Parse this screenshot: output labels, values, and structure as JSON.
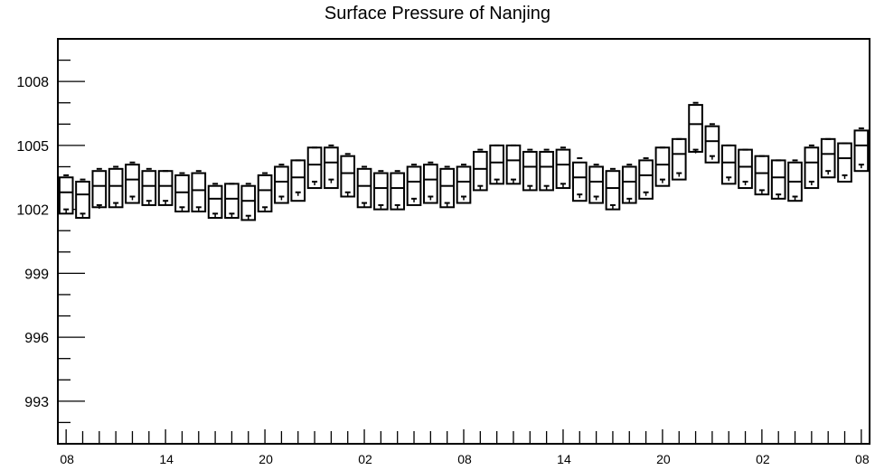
{
  "chart_data": {
    "type": "box",
    "title": "Surface Pressure of Nanjing",
    "xlabel": "",
    "ylabel": "",
    "ylim": [
      991,
      1010
    ],
    "yticks": [
      993,
      996,
      999,
      1002,
      1005,
      1008
    ],
    "ytick_labels": [
      "993",
      "996",
      "999",
      "1002",
      "1005",
      "1008"
    ],
    "xtick_labels": [
      "08",
      "14",
      "20",
      "02",
      "08",
      "14",
      "20",
      "02",
      "08"
    ],
    "xtick_label_every": 6,
    "grid": false,
    "n_boxes": 49,
    "series": [
      {
        "name": "",
        "q1": [
          1001.8,
          1001.6,
          1002.1,
          1002.1,
          1002.3,
          1002.2,
          1002.2,
          1001.9,
          1001.9,
          1001.6,
          1001.6,
          1001.5,
          1001.9,
          1002.3,
          1002.4,
          1003.0,
          1003.0,
          1002.6,
          1002.1,
          1002.0,
          1002.0,
          1002.2,
          1002.3,
          1002.1,
          1002.3,
          1002.9,
          1003.2,
          1003.2,
          1002.9,
          1002.9,
          1003.0,
          1002.4,
          1002.3,
          1002.0,
          1002.3,
          1002.5,
          1003.1,
          1003.4,
          1004.7,
          1004.2,
          1003.2,
          1003.0,
          1002.7,
          1002.5,
          1002.4,
          1003.0,
          1003.5,
          1003.3,
          1003.8
        ],
        "median": [
          1002.8,
          1002.7,
          1003.1,
          1003.1,
          1003.4,
          1003.1,
          1003.1,
          1002.8,
          1002.9,
          1002.5,
          1002.5,
          1002.4,
          1002.9,
          1003.3,
          1003.5,
          1004.1,
          1004.2,
          1003.7,
          1003.1,
          1003.0,
          1003.0,
          1003.3,
          1003.4,
          1003.1,
          1003.3,
          1003.9,
          1004.2,
          1004.3,
          1004.0,
          1004.0,
          1004.1,
          1003.5,
          1003.3,
          1003.0,
          1003.3,
          1003.6,
          1004.1,
          1004.6,
          1006.0,
          1005.2,
          1004.2,
          1004.0,
          1003.7,
          1003.5,
          1003.3,
          1004.2,
          1004.6,
          1004.4,
          1005.0
        ],
        "q3": [
          1003.5,
          1003.3,
          1003.8,
          1003.9,
          1004.1,
          1003.8,
          1003.8,
          1003.6,
          1003.7,
          1003.1,
          1003.2,
          1003.1,
          1003.6,
          1004.0,
          1004.3,
          1004.9,
          1004.9,
          1004.5,
          1003.9,
          1003.7,
          1003.7,
          1004.0,
          1004.1,
          1003.9,
          1004.0,
          1004.7,
          1005.0,
          1005.0,
          1004.7,
          1004.7,
          1004.8,
          1004.2,
          1004.0,
          1003.8,
          1004.0,
          1004.3,
          1004.9,
          1005.3,
          1006.9,
          1005.9,
          1005.0,
          1004.8,
          1004.5,
          1004.3,
          1004.2,
          1004.9,
          1005.3,
          1005.1,
          1005.7
        ],
        "whisker_low": [
          1002.0,
          1001.8,
          1002.2,
          1002.3,
          1002.6,
          1002.4,
          1002.4,
          1002.1,
          1002.1,
          1001.8,
          1001.8,
          1001.7,
          1002.1,
          1002.6,
          1002.8,
          1003.3,
          1003.4,
          1002.8,
          1002.3,
          1002.2,
          1002.2,
          1002.5,
          1002.6,
          1002.3,
          1002.6,
          1003.1,
          1003.4,
          1003.4,
          1003.1,
          1003.1,
          1003.2,
          1002.7,
          1002.6,
          1002.2,
          1002.5,
          1002.8,
          1003.4,
          1003.7,
          1004.8,
          1004.5,
          1003.5,
          1003.3,
          1002.9,
          1002.7,
          1002.6,
          1003.3,
          1003.8,
          1003.6,
          1004.1
        ],
        "whisker_high": [
          1003.6,
          1003.4,
          1003.9,
          1004.0,
          1004.2,
          1003.9,
          1003.8,
          1003.7,
          1003.8,
          1003.2,
          1003.2,
          1003.2,
          1003.7,
          1004.1,
          1004.3,
          1004.9,
          1005.0,
          1004.6,
          1004.0,
          1003.8,
          1003.8,
          1004.1,
          1004.2,
          1004.0,
          1004.1,
          1004.8,
          1005.0,
          1005.0,
          1004.8,
          1004.8,
          1004.9,
          1004.4,
          1004.1,
          1003.9,
          1004.1,
          1004.4,
          1004.9,
          1005.3,
          1007.0,
          1006.0,
          1005.0,
          1004.8,
          1004.5,
          1004.3,
          1004.3,
          1005.0,
          1005.3,
          1005.1,
          1005.8
        ]
      }
    ]
  }
}
